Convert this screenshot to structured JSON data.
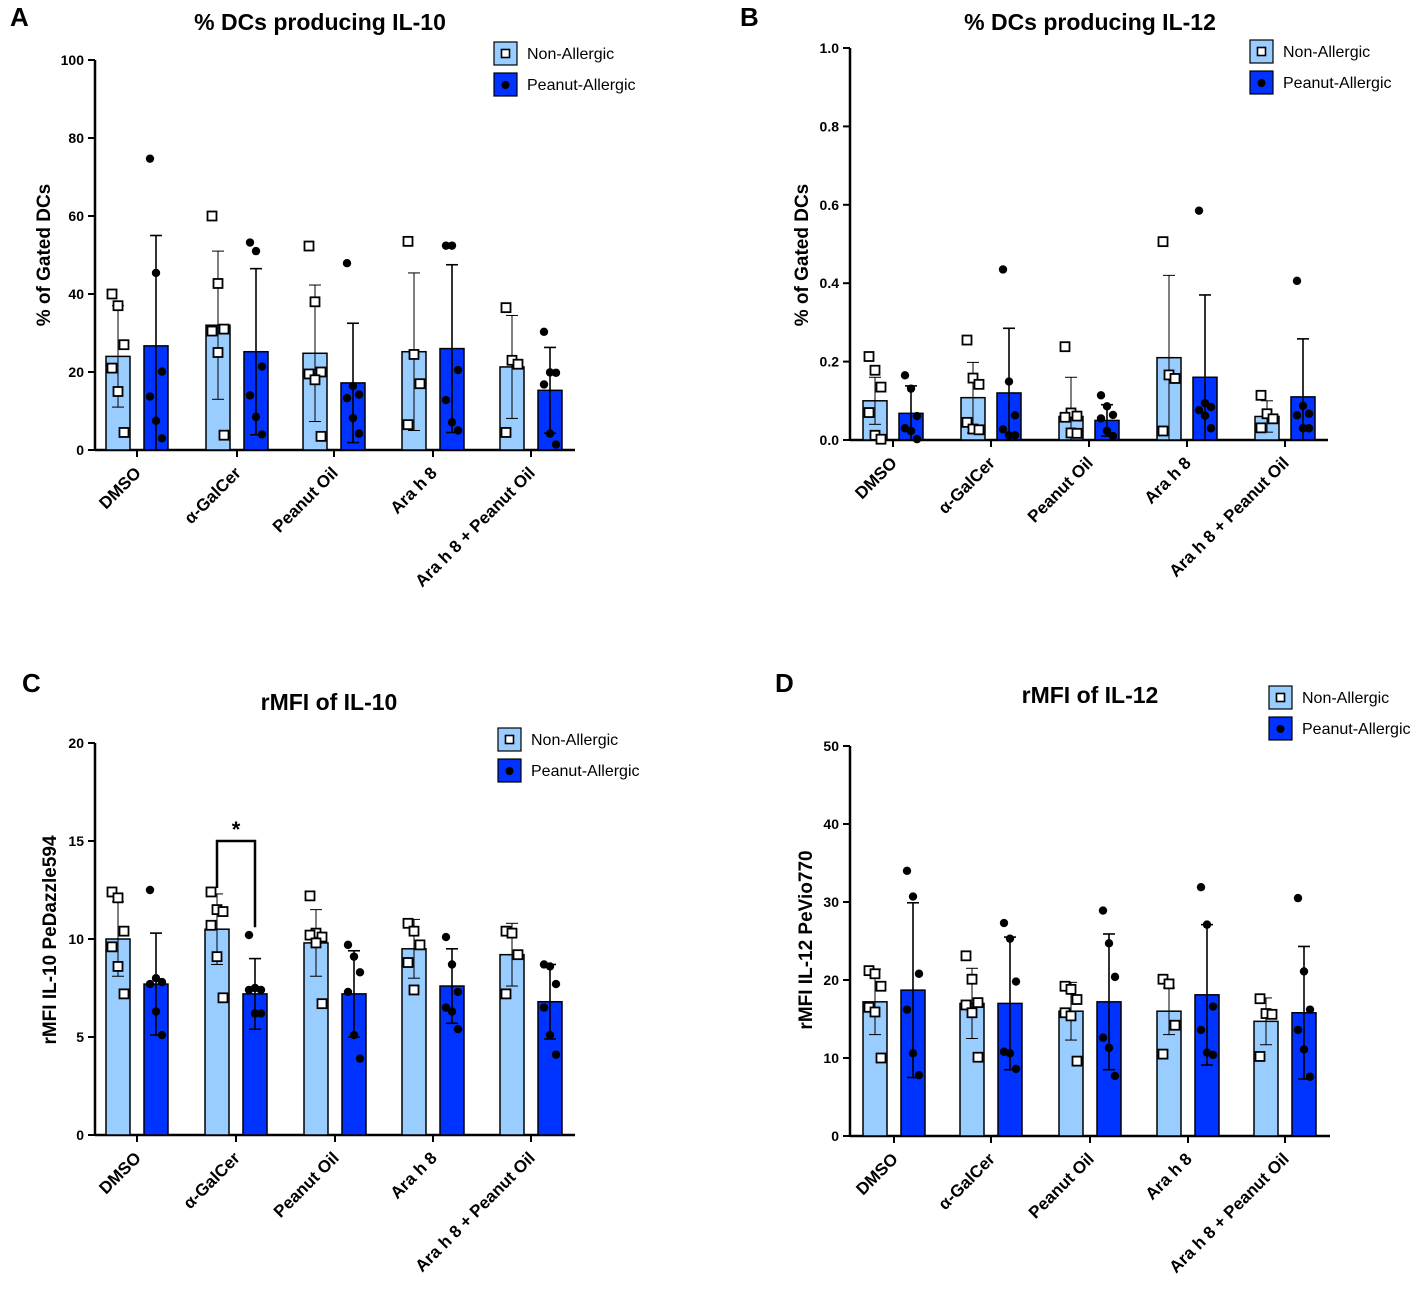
{
  "figure": {
    "group_names": [
      "Non-Allergic",
      "Peanut-Allergic"
    ],
    "colors": {
      "non_allergic": "#99ccff",
      "peanut_allergic": "#0033ff",
      "outline": "#000000"
    }
  },
  "chart_data": [
    {
      "panel": "A",
      "type": "bar",
      "title": "% DCs producing IL-10",
      "xlabel": "",
      "ylabel": "% of Gated DCs",
      "ylim": [
        0,
        100
      ],
      "yticks": [
        0,
        20,
        40,
        60,
        80,
        100
      ],
      "categories": [
        "DMSO",
        "α-GalCer",
        "Peanut Oil",
        "Ara h 8",
        "Ara h 8 + Peanut Oil"
      ],
      "series": [
        {
          "name": "Non-Allergic",
          "values": [
            24,
            32,
            24.8,
            25.2,
            21.3
          ],
          "sd": [
            13,
            19,
            17.5,
            20.2,
            13.2
          ],
          "points": [
            [
              40,
              37,
              27,
              21,
              15,
              4.5
            ],
            [
              60,
              42.7,
              31,
              30.5,
              25,
              3.8
            ],
            [
              52.3,
              38,
              20,
              19.5,
              18,
              3.5
            ],
            [
              53.5,
              24.5,
              17,
              6.5
            ],
            [
              36.5,
              23,
              22,
              4.5
            ]
          ]
        },
        {
          "name": "Peanut-Allergic",
          "values": [
            26.7,
            25.2,
            17.2,
            26,
            15.3
          ],
          "sd": [
            28.3,
            21.3,
            15.3,
            21.5,
            11
          ],
          "points": [
            [
              74.7,
              45.4,
              20.1,
              13.7,
              7.5,
              3
            ],
            [
              53.2,
              51,
              21.4,
              14,
              8.5,
              4
            ],
            [
              47.9,
              16.4,
              14.2,
              13.3,
              8.2,
              4.2
            ],
            [
              52.4,
              52.4,
              20.5,
              12.8,
              7.1,
              5
            ],
            [
              30.3,
              19.9,
              19.8,
              16.8,
              4.2,
              1.4
            ]
          ]
        }
      ]
    },
    {
      "panel": "B",
      "type": "bar",
      "title": "% DCs producing IL-12",
      "xlabel": "",
      "ylabel": "% of Gated DCs",
      "ylim": [
        0,
        1.0
      ],
      "yticks": [
        0.0,
        0.2,
        0.4,
        0.6,
        0.8,
        1.0
      ],
      "categories": [
        "DMSO",
        "α-GalCer",
        "Peanut Oil",
        "Ara h 8",
        "Ara h 8 + Peanut Oil"
      ],
      "series": [
        {
          "name": "Non-Allergic",
          "values": [
            0.1,
            0.108,
            0.06,
            0.21,
            0.06
          ],
          "sd": [
            0.06,
            0.09,
            0.1,
            0.21,
            0.04
          ],
          "points": [
            [
              0.213,
              0.178,
              0.135,
              0.07,
              0.012,
              0.002
            ],
            [
              0.255,
              0.158,
              0.142,
              0.045,
              0.028,
              0.026
            ],
            [
              0.238,
              0.069,
              0.061,
              0.058,
              0.018,
              0.017
            ],
            [
              0.506,
              0.166,
              0.157,
              0.023
            ],
            [
              0.114,
              0.067,
              0.054,
              0.031
            ]
          ]
        },
        {
          "name": "Peanut-Allergic",
          "values": [
            0.068,
            0.12,
            0.05,
            0.16,
            0.11
          ],
          "sd": [
            0.07,
            0.165,
            0.04,
            0.21,
            0.148
          ],
          "points": [
            [
              0.165,
              0.131,
              0.061,
              0.03,
              0.023,
              0.002
            ],
            [
              0.435,
              0.149,
              0.063,
              0.027,
              0.012,
              0.012
            ],
            [
              0.114,
              0.086,
              0.064,
              0.055,
              0.023,
              0.01
            ],
            [
              0.585,
              0.094,
              0.084,
              0.076,
              0.062,
              0.03
            ],
            [
              0.406,
              0.087,
              0.067,
              0.063,
              0.03,
              0.03
            ]
          ]
        }
      ]
    },
    {
      "panel": "C",
      "type": "bar",
      "title": "rMFI of IL-10",
      "xlabel": "",
      "ylabel": "rMFI IL-10 PeDazzle594",
      "ylim": [
        0,
        20
      ],
      "yticks": [
        0,
        5,
        10,
        15,
        20
      ],
      "categories": [
        "DMSO",
        "α-GalCer",
        "Peanut Oil",
        "Ara h 8",
        "Ara h 8 + Peanut Oil"
      ],
      "annotation": {
        "text": "*",
        "between": "α-GalCer"
      },
      "series": [
        {
          "name": "Non-Allergic",
          "values": [
            10,
            10.5,
            9.8,
            9.5,
            9.2
          ],
          "sd": [
            1.9,
            1.8,
            1.7,
            1.5,
            1.6
          ],
          "points": [
            [
              12.4,
              12.1,
              10.4,
              9.6,
              8.6,
              7.2
            ],
            [
              12.4,
              11.5,
              11.4,
              10.7,
              9.1,
              7
            ],
            [
              12.2,
              10.3,
              10.1,
              10.2,
              9.8,
              6.7
            ],
            [
              10.8,
              10.4,
              9.7,
              8.8,
              7.4
            ],
            [
              10.4,
              10.3,
              9.2,
              7.2
            ]
          ]
        },
        {
          "name": "Peanut-Allergic",
          "values": [
            7.7,
            7.2,
            7.2,
            7.6,
            6.8
          ],
          "sd": [
            2.6,
            1.8,
            2.2,
            1.9,
            1.9
          ],
          "points": [
            [
              12.5,
              8,
              7.8,
              7.7,
              6.3,
              5.1
            ],
            [
              10.2,
              7.5,
              7.4,
              7.4,
              6.2,
              6.2
            ],
            [
              9.7,
              9.1,
              8.3,
              7.3,
              5.1,
              3.9
            ],
            [
              10.1,
              8.7,
              7.3,
              6.5,
              6.3,
              5.4
            ],
            [
              8.7,
              8.6,
              7.7,
              6.5,
              5.1,
              4.1
            ]
          ]
        }
      ]
    },
    {
      "panel": "D",
      "type": "bar",
      "title": "rMFI of IL-12",
      "xlabel": "",
      "ylabel": "rMFI IL-12 PeVio770",
      "ylim": [
        0,
        50
      ],
      "yticks": [
        0,
        10,
        20,
        30,
        40,
        50
      ],
      "categories": [
        "DMSO",
        "α-GalCer",
        "Peanut Oil",
        "Ara h 8",
        "Ara h 8 + Peanut Oil"
      ],
      "series": [
        {
          "name": "Non-Allergic",
          "values": [
            17.2,
            17,
            16,
            16,
            14.7
          ],
          "sd": [
            4.2,
            4.5,
            3.7,
            3,
            3
          ],
          "points": [
            [
              21.2,
              20.8,
              19.2,
              16.5,
              15.9,
              10
            ],
            [
              23.1,
              20.1,
              17.1,
              16.8,
              15.8,
              10.1
            ],
            [
              19.2,
              18.8,
              17.5,
              15.8,
              15.4,
              9.6
            ],
            [
              20.1,
              19.5,
              14.2,
              10.5
            ],
            [
              17.6,
              15.7,
              15.6,
              10.2
            ]
          ]
        },
        {
          "name": "Peanut-Allergic",
          "values": [
            18.7,
            17,
            17.2,
            18.1,
            15.8
          ],
          "sd": [
            11.2,
            8.5,
            8.7,
            9,
            8.5
          ],
          "points": [
            [
              34,
              30.7,
              20.8,
              16.2,
              10.6,
              7.8
            ],
            [
              27.3,
              25.3,
              19.8,
              10.8,
              10.6,
              8.6
            ],
            [
              28.9,
              24.7,
              20.4,
              12.6,
              11.3,
              7.7
            ],
            [
              31.9,
              27.1,
              16.6,
              13.6,
              10.7,
              10.4
            ],
            [
              30.5,
              21.1,
              16.2,
              13.6,
              11.1,
              7.6
            ]
          ]
        }
      ]
    }
  ]
}
